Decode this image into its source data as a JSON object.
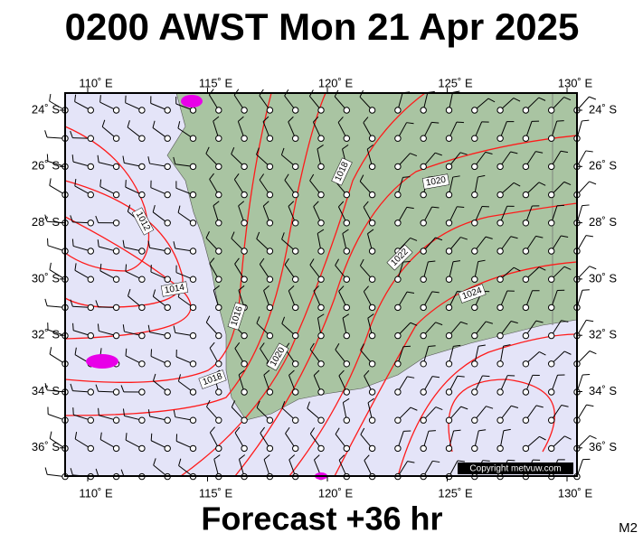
{
  "header": {
    "title": "0200 AWST Mon 21 Apr 2025"
  },
  "axes": {
    "lon_labels": [
      "110˚ E",
      "115˚ E",
      "120˚ E",
      "125˚ E",
      "130˚ E"
    ],
    "lat_labels": [
      "24˚ S",
      "26˚ S",
      "28˚ S",
      "30˚ S",
      "32˚ S",
      "34˚ S",
      "36˚ S"
    ]
  },
  "isobar_labels": [
    "1012",
    "1014",
    "1016",
    "1018",
    "1018",
    "1020",
    "1020",
    "1022",
    "1024"
  ],
  "copyright": "Copyright metvuw.com",
  "footer": {
    "forecast": "Forecast +36 hr",
    "model_code": "M2"
  }
}
